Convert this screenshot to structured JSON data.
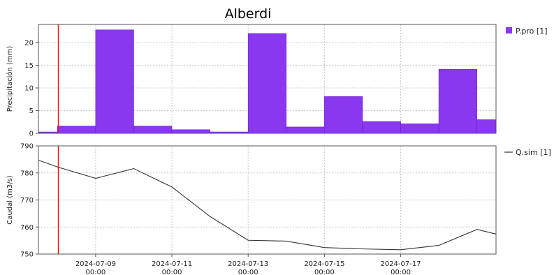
{
  "chart_data": {
    "title": "Alberdi",
    "x_domain": [
      "2024-07-07T12:00",
      "2024-07-19T12:00"
    ],
    "x_ticks": [
      {
        "date": "2024-07-09T00:00",
        "label_line1": "2024-07-09",
        "label_line2": "00:00"
      },
      {
        "date": "2024-07-11T00:00",
        "label_line1": "2024-07-11",
        "label_line2": "00:00"
      },
      {
        "date": "2024-07-13T00:00",
        "label_line1": "2024-07-13",
        "label_line2": "00:00"
      },
      {
        "date": "2024-07-15T00:00",
        "label_line1": "2024-07-15",
        "label_line2": "00:00"
      },
      {
        "date": "2024-07-17T00:00",
        "label_line1": "2024-07-17",
        "label_line2": "00:00"
      }
    ],
    "marker_line": {
      "date": "2024-07-08T00:30",
      "color": "#ff0000"
    },
    "grid": true,
    "charts": [
      {
        "type": "bar",
        "ylabel": "Precipitación (mm)",
        "ylim": [
          0,
          24
        ],
        "yticks": [
          0,
          5,
          10,
          15,
          20
        ],
        "legend_position": "top-right",
        "series": [
          {
            "name": "P.pro [1]",
            "color": "#8a38f0",
            "bars": [
              {
                "start": "2024-07-07T12:00",
                "end": "2024-07-08T00:00",
                "value": 0.3
              },
              {
                "start": "2024-07-08T00:00",
                "end": "2024-07-09T00:00",
                "value": 1.6
              },
              {
                "start": "2024-07-09T00:00",
                "end": "2024-07-10T00:00",
                "value": 22.8
              },
              {
                "start": "2024-07-10T00:00",
                "end": "2024-07-11T00:00",
                "value": 1.6
              },
              {
                "start": "2024-07-11T00:00",
                "end": "2024-07-12T00:00",
                "value": 0.8
              },
              {
                "start": "2024-07-12T00:00",
                "end": "2024-07-13T00:00",
                "value": 0.3
              },
              {
                "start": "2024-07-13T00:00",
                "end": "2024-07-14T00:00",
                "value": 22.0
              },
              {
                "start": "2024-07-14T00:00",
                "end": "2024-07-15T00:00",
                "value": 1.4
              },
              {
                "start": "2024-07-15T00:00",
                "end": "2024-07-16T00:00",
                "value": 8.1
              },
              {
                "start": "2024-07-16T00:00",
                "end": "2024-07-17T00:00",
                "value": 2.6
              },
              {
                "start": "2024-07-17T00:00",
                "end": "2024-07-18T00:00",
                "value": 2.1
              },
              {
                "start": "2024-07-18T00:00",
                "end": "2024-07-19T00:00",
                "value": 14.1
              },
              {
                "start": "2024-07-19T00:00",
                "end": "2024-07-19T12:00",
                "value": 3.0
              }
            ]
          }
        ]
      },
      {
        "type": "line",
        "ylabel": "Caudal (m3/s)",
        "ylim": [
          750,
          790
        ],
        "yticks": [
          750,
          760,
          770,
          780,
          790
        ],
        "legend_position": "top-right",
        "series": [
          {
            "name": "Q.sim [1]",
            "color": "#333333",
            "points": [
              {
                "x": "2024-07-07T12:00",
                "y": 784.7
              },
              {
                "x": "2024-07-08T00:00",
                "y": 782.2
              },
              {
                "x": "2024-07-09T00:00",
                "y": 778.0
              },
              {
                "x": "2024-07-10T00:00",
                "y": 781.6
              },
              {
                "x": "2024-07-11T00:00",
                "y": 774.8
              },
              {
                "x": "2024-07-12T00:00",
                "y": 763.9
              },
              {
                "x": "2024-07-13T00:00",
                "y": 755.1
              },
              {
                "x": "2024-07-14T00:00",
                "y": 754.8
              },
              {
                "x": "2024-07-15T00:00",
                "y": 752.4
              },
              {
                "x": "2024-07-16T00:00",
                "y": 751.9
              },
              {
                "x": "2024-07-17T00:00",
                "y": 751.6
              },
              {
                "x": "2024-07-18T00:00",
                "y": 753.2
              },
              {
                "x": "2024-07-19T00:00",
                "y": 759.1
              },
              {
                "x": "2024-07-19T12:00",
                "y": 757.4
              }
            ]
          }
        ]
      }
    ]
  }
}
